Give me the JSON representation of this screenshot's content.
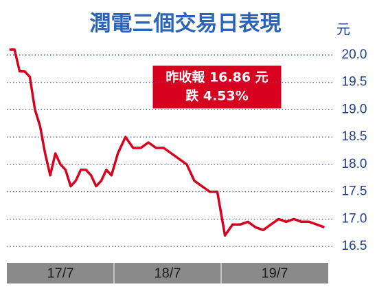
{
  "chart_data": {
    "type": "line",
    "title": "潤電三個交易日表現",
    "unit": "元",
    "annotations": [
      "昨收報 16.86 元",
      "跌 4.53%"
    ],
    "categories": [
      "17/7",
      "18/7",
      "19/7"
    ],
    "series": [
      {
        "color": "#d7001e",
        "values": [
          [
            20.1,
            20.1,
            19.7,
            19.7,
            19.6,
            19.0,
            18.7,
            18.2,
            17.8,
            18.2,
            18.0,
            17.9,
            17.6,
            17.7,
            17.9,
            17.9,
            17.8,
            17.6,
            17.7,
            17.9,
            17.8
          ],
          [
            18.2,
            18.5,
            18.3,
            18.3,
            18.4,
            18.3,
            18.3,
            18.2,
            18.1,
            18.0,
            17.7,
            17.6,
            17.5,
            17.5
          ],
          [
            16.7,
            16.9,
            16.9,
            16.95,
            16.85,
            16.8,
            16.9,
            17.0,
            16.95,
            17.0,
            16.95,
            16.95,
            16.9,
            16.85
          ]
        ]
      }
    ],
    "ylim": [
      16.3,
      20.15
    ],
    "yticks": [
      {
        "value": 20,
        "label": "20.0"
      },
      19.5,
      {
        "value": 19,
        "label": "19.0"
      },
      18.5,
      {
        "value": 18,
        "label": "18.0"
      },
      17.5,
      {
        "value": 17,
        "label": "17.0"
      },
      16.5
    ],
    "grid": true
  }
}
